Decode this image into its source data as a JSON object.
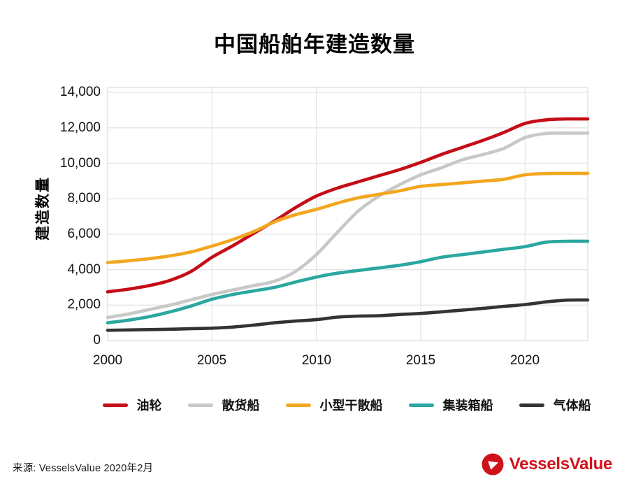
{
  "chart_data": {
    "type": "line",
    "title": "中国船舶年建造数量",
    "ylabel": "建造数量",
    "xlabel": "",
    "x": [
      2000,
      2001,
      2002,
      2003,
      2004,
      2005,
      2006,
      2007,
      2008,
      2009,
      2010,
      2011,
      2012,
      2013,
      2014,
      2015,
      2016,
      2017,
      2018,
      2019,
      2020,
      2021,
      2022,
      2023
    ],
    "xticks": [
      2000,
      2005,
      2010,
      2015,
      2020
    ],
    "xtick_labels": [
      "2000",
      "2005",
      "2010",
      "2015",
      "2020"
    ],
    "yticks": [
      0,
      2000,
      4000,
      6000,
      8000,
      10000,
      12000,
      14000
    ],
    "ytick_labels": [
      "0",
      "2,000",
      "4,000",
      "6,000",
      "8,000",
      "10,000",
      "12,000",
      "14,000"
    ],
    "ylim": [
      0,
      14350
    ],
    "grid": true,
    "legend_position": "bottom",
    "series": [
      {
        "key": "tanker",
        "name": "油轮",
        "color": "#c50d17",
        "values": [
          2750,
          2900,
          3100,
          3400,
          3900,
          4700,
          5350,
          6050,
          6750,
          7500,
          8150,
          8600,
          8950,
          9300,
          9650,
          10050,
          10500,
          10900,
          11300,
          11750,
          12250,
          12450,
          12500,
          12500
        ]
      },
      {
        "key": "bulk-carrier",
        "name": "散货船",
        "color": "#c8c8c8",
        "values": [
          1300,
          1500,
          1750,
          2000,
          2300,
          2600,
          2850,
          3100,
          3350,
          3900,
          4850,
          6100,
          7300,
          8150,
          8800,
          9350,
          9750,
          10200,
          10500,
          10850,
          11450,
          11680,
          11700,
          11700
        ]
      },
      {
        "key": "small-dry-bulk",
        "name": "小型干散船",
        "color": "#f2a71f",
        "values": [
          4400,
          4500,
          4620,
          4780,
          5000,
          5330,
          5700,
          6150,
          6700,
          7100,
          7400,
          7750,
          8050,
          8250,
          8450,
          8700,
          8800,
          8900,
          9000,
          9100,
          9350,
          9420,
          9430,
          9430
        ]
      },
      {
        "key": "container",
        "name": "集装箱船",
        "color": "#2aa7a0",
        "values": [
          1000,
          1150,
          1350,
          1620,
          1950,
          2330,
          2600,
          2800,
          3000,
          3300,
          3580,
          3800,
          3950,
          4100,
          4250,
          4450,
          4700,
          4850,
          5000,
          5150,
          5300,
          5550,
          5600,
          5600
        ]
      },
      {
        "key": "gas-carrier",
        "name": "气体船",
        "color": "#333333",
        "values": [
          580,
          600,
          620,
          640,
          670,
          700,
          760,
          870,
          1000,
          1100,
          1180,
          1320,
          1380,
          1400,
          1470,
          1530,
          1620,
          1720,
          1820,
          1930,
          2030,
          2180,
          2280,
          2290
        ]
      }
    ]
  },
  "colors": {
    "gridline": "#e5e5e5",
    "plot_border": "#dddddd",
    "background": "#ffffff"
  },
  "footer": {
    "source_text": "来源: VesselsValue 2020年2月",
    "logo_text": "VesselsValue",
    "logo_color": "#d0121a"
  }
}
